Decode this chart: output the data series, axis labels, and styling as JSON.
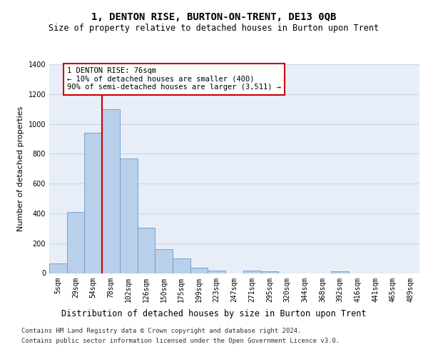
{
  "title": "1, DENTON RISE, BURTON-ON-TRENT, DE13 0QB",
  "subtitle": "Size of property relative to detached houses in Burton upon Trent",
  "xlabel": "Distribution of detached houses by size in Burton upon Trent",
  "ylabel": "Number of detached properties",
  "categories": [
    "5sqm",
    "29sqm",
    "54sqm",
    "78sqm",
    "102sqm",
    "126sqm",
    "150sqm",
    "175sqm",
    "199sqm",
    "223sqm",
    "247sqm",
    "271sqm",
    "295sqm",
    "320sqm",
    "344sqm",
    "368sqm",
    "392sqm",
    "416sqm",
    "441sqm",
    "465sqm",
    "489sqm"
  ],
  "values": [
    65,
    410,
    940,
    1100,
    770,
    305,
    160,
    100,
    35,
    15,
    0,
    18,
    10,
    0,
    0,
    0,
    12,
    0,
    0,
    0,
    0
  ],
  "bar_color": "#b8d0ea",
  "bar_edge_color": "#6699cc",
  "vline_bin_index": 3,
  "vline_color": "#cc0000",
  "annotation_line1": "1 DENTON RISE: 76sqm",
  "annotation_line2": "← 10% of detached houses are smaller (400)",
  "annotation_line3": "90% of semi-detached houses are larger (3,511) →",
  "annotation_box_edgecolor": "#cc0000",
  "ylim": [
    0,
    1400
  ],
  "yticks": [
    0,
    200,
    400,
    600,
    800,
    1000,
    1200,
    1400
  ],
  "grid_color": "#c8d4e8",
  "background_color": "#e8eef8",
  "footer_line1": "Contains HM Land Registry data © Crown copyright and database right 2024.",
  "footer_line2": "Contains public sector information licensed under the Open Government Licence v3.0.",
  "title_fontsize": 10,
  "subtitle_fontsize": 8.5,
  "xlabel_fontsize": 8.5,
  "ylabel_fontsize": 8,
  "tick_fontsize": 7,
  "annotation_fontsize": 7.5,
  "footer_fontsize": 6.5
}
